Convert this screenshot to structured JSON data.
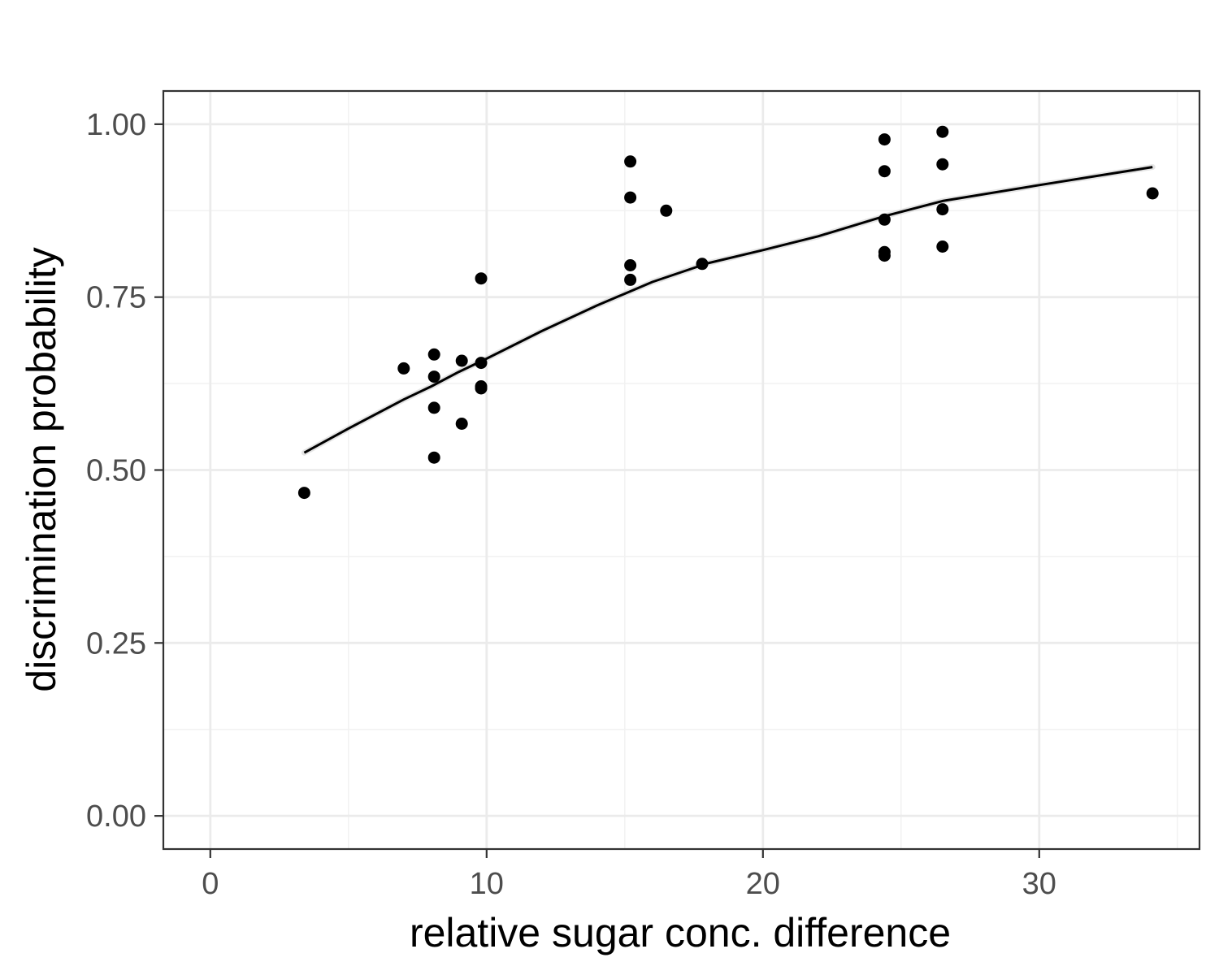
{
  "chart_data": {
    "type": "scatter",
    "title": "",
    "xlabel": "relative sugar conc. difference",
    "ylabel": "discrimination probability",
    "xlim": [
      -1.7,
      35.8
    ],
    "ylim": [
      -0.048,
      1.048
    ],
    "x_ticks": [
      0,
      10,
      20,
      30
    ],
    "x_tick_labels": [
      "0",
      "10",
      "20",
      "30"
    ],
    "y_ticks": [
      0,
      0.25,
      0.5,
      0.75,
      1.0
    ],
    "y_tick_labels": [
      "0.00",
      "0.25",
      "0.50",
      "0.75",
      "1.00"
    ],
    "grid": true,
    "legend": "none",
    "series": [
      {
        "type": "scatter",
        "points": [
          [
            3.4,
            0.467
          ],
          [
            7.0,
            0.647
          ],
          [
            8.1,
            0.667
          ],
          [
            8.1,
            0.635
          ],
          [
            8.1,
            0.59
          ],
          [
            8.1,
            0.518
          ],
          [
            9.1,
            0.658
          ],
          [
            9.1,
            0.567
          ],
          [
            9.8,
            0.777
          ],
          [
            9.8,
            0.655
          ],
          [
            9.8,
            0.621
          ],
          [
            9.8,
            0.618
          ],
          [
            15.2,
            0.946
          ],
          [
            15.2,
            0.894
          ],
          [
            15.2,
            0.796
          ],
          [
            15.2,
            0.775
          ],
          [
            16.5,
            0.875
          ],
          [
            17.8,
            0.798
          ],
          [
            24.4,
            0.978
          ],
          [
            24.4,
            0.932
          ],
          [
            24.4,
            0.862
          ],
          [
            24.4,
            0.815
          ],
          [
            24.4,
            0.81
          ],
          [
            26.5,
            0.989
          ],
          [
            26.5,
            0.942
          ],
          [
            26.5,
            0.877
          ],
          [
            26.5,
            0.823
          ],
          [
            34.1,
            0.9
          ]
        ]
      },
      {
        "type": "line",
        "points": [
          [
            3.4,
            0.525
          ],
          [
            5.0,
            0.56
          ],
          [
            7.0,
            0.602
          ],
          [
            8.0,
            0.621
          ],
          [
            9.0,
            0.642
          ],
          [
            10.0,
            0.661
          ],
          [
            12.0,
            0.701
          ],
          [
            14.0,
            0.738
          ],
          [
            16.0,
            0.772
          ],
          [
            18.0,
            0.799
          ],
          [
            20.0,
            0.818
          ],
          [
            22.0,
            0.838
          ],
          [
            24.4,
            0.867
          ],
          [
            26.5,
            0.889
          ],
          [
            30.0,
            0.912
          ],
          [
            34.1,
            0.938
          ]
        ]
      }
    ],
    "colors": {
      "point": "#000000",
      "line": "#000000",
      "band": "#d9d9d9",
      "grid_major": "#ebebeb",
      "grid_minor": "#f2f2f2",
      "panel_border": "#333333",
      "tick_label": "#4d4d4d"
    }
  }
}
